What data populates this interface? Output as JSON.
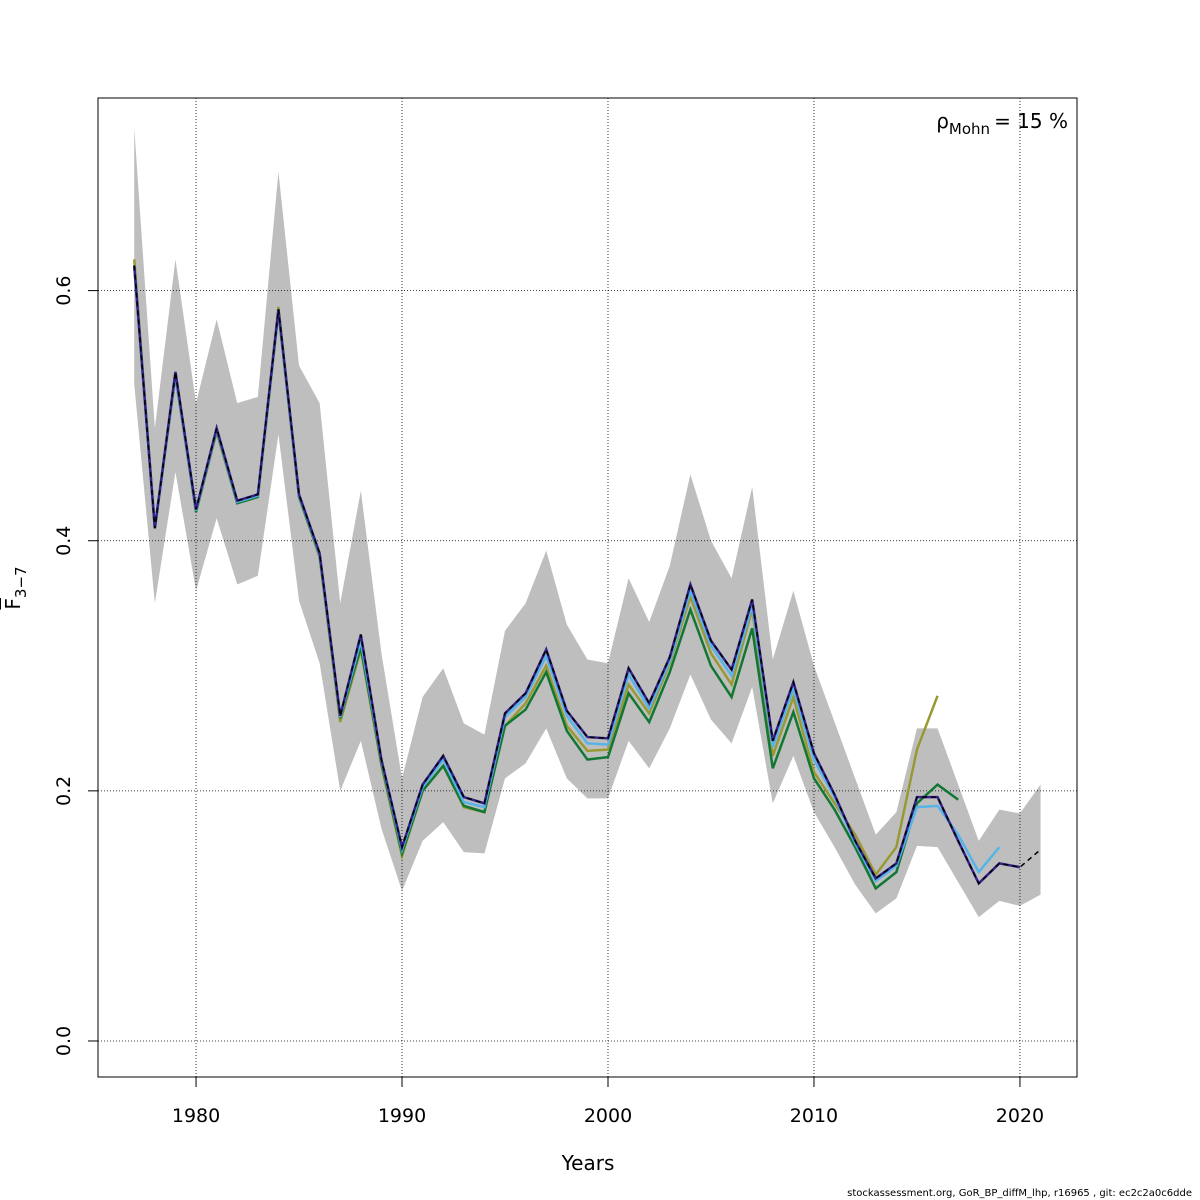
{
  "chart_data": {
    "type": "line",
    "xlabel": "Years",
    "ylabel": {
      "main": "F",
      "sub": "3−7"
    },
    "annotation": {
      "symbol": "ρ",
      "sub": "Mohn",
      "text": "= 15 %"
    },
    "footer": "stockassessment.org, GoR_BP_diffM_lhp, r16965 , git: ec2c2a0c6dde",
    "x": [
      1977,
      1978,
      1979,
      1980,
      1981,
      1982,
      1983,
      1984,
      1985,
      1986,
      1987,
      1988,
      1989,
      1990,
      1991,
      1992,
      1993,
      1994,
      1995,
      1996,
      1997,
      1998,
      1999,
      2000,
      2001,
      2002,
      2003,
      2004,
      2005,
      2006,
      2007,
      2008,
      2009,
      2010,
      2011,
      2012,
      2013,
      2014,
      2015,
      2016,
      2017,
      2018,
      2019,
      2020,
      2021
    ],
    "band": {
      "color": "#bebebe",
      "upper": [
        0.73,
        0.49,
        0.625,
        0.51,
        0.577,
        0.51,
        0.515,
        0.695,
        0.54,
        0.51,
        0.35,
        0.44,
        0.31,
        0.21,
        0.275,
        0.298,
        0.254,
        0.245,
        0.328,
        0.35,
        0.392,
        0.333,
        0.305,
        0.302,
        0.37,
        0.335,
        0.38,
        0.453,
        0.4,
        0.37,
        0.443,
        0.305,
        0.36,
        0.3,
        0.255,
        0.21,
        0.165,
        0.183,
        0.25,
        0.25,
        0.205,
        0.16,
        0.185,
        0.182,
        0.205
      ],
      "lower": [
        0.525,
        0.35,
        0.455,
        0.36,
        0.418,
        0.365,
        0.372,
        0.485,
        0.352,
        0.302,
        0.2,
        0.24,
        0.17,
        0.12,
        0.16,
        0.175,
        0.151,
        0.15,
        0.21,
        0.222,
        0.25,
        0.21,
        0.194,
        0.194,
        0.24,
        0.218,
        0.25,
        0.293,
        0.257,
        0.238,
        0.283,
        0.19,
        0.228,
        0.183,
        0.155,
        0.125,
        0.102,
        0.114,
        0.156,
        0.155,
        0.127,
        0.099,
        0.112,
        0.108,
        0.117
      ]
    },
    "series": [
      {
        "color": "#999933",
        "values": [
          0.625,
          0.41,
          0.535,
          0.423,
          0.487,
          0.43,
          0.435,
          0.587,
          0.435,
          0.387,
          0.255,
          0.313,
          0.22,
          0.148,
          0.2,
          0.22,
          0.187,
          0.183,
          0.252,
          0.27,
          0.3,
          0.252,
          0.232,
          0.233,
          0.285,
          0.262,
          0.302,
          0.355,
          0.31,
          0.285,
          0.345,
          0.228,
          0.275,
          0.215,
          0.19,
          0.165,
          0.133,
          0.155,
          0.233,
          0.276,
          null,
          null,
          null,
          null,
          null
        ]
      },
      {
        "color": "#117733",
        "values": [
          0.62,
          0.41,
          0.532,
          0.423,
          0.488,
          0.43,
          0.435,
          0.583,
          0.435,
          0.388,
          0.258,
          0.315,
          0.222,
          0.15,
          0.2,
          0.22,
          0.188,
          0.183,
          0.252,
          0.265,
          0.295,
          0.248,
          0.225,
          0.227,
          0.278,
          0.255,
          0.295,
          0.345,
          0.3,
          0.275,
          0.33,
          0.218,
          0.263,
          0.21,
          0.185,
          0.155,
          0.122,
          0.135,
          0.19,
          0.205,
          0.193,
          null,
          null,
          null,
          null
        ]
      },
      {
        "color": "#56b4e9",
        "values": [
          0.62,
          0.41,
          0.533,
          0.424,
          0.489,
          0.431,
          0.436,
          0.584,
          0.436,
          0.389,
          0.259,
          0.32,
          0.224,
          0.153,
          0.203,
          0.225,
          0.191,
          0.187,
          0.259,
          0.275,
          0.308,
          0.26,
          0.238,
          0.237,
          0.293,
          0.266,
          0.304,
          0.36,
          0.316,
          0.292,
          0.348,
          0.235,
          0.282,
          0.225,
          0.195,
          0.158,
          0.128,
          0.14,
          0.187,
          0.188,
          0.165,
          0.135,
          0.155,
          null,
          null
        ]
      },
      {
        "color": "#332288",
        "values": [
          0.62,
          0.41,
          0.535,
          0.425,
          0.49,
          0.432,
          0.437,
          0.585,
          0.437,
          0.39,
          0.26,
          0.325,
          0.225,
          0.155,
          0.205,
          0.228,
          0.195,
          0.19,
          0.262,
          0.278,
          0.313,
          0.264,
          0.243,
          0.242,
          0.298,
          0.27,
          0.307,
          0.365,
          0.32,
          0.297,
          0.353,
          0.24,
          0.287,
          0.23,
          0.197,
          0.16,
          0.13,
          0.142,
          0.195,
          0.195,
          0.16,
          0.126,
          0.142,
          0.139,
          null
        ]
      },
      {
        "color": "#000000",
        "dash": true,
        "values": [
          0.62,
          0.41,
          0.535,
          0.425,
          0.49,
          0.432,
          0.437,
          0.585,
          0.437,
          0.39,
          0.26,
          0.325,
          0.225,
          0.155,
          0.205,
          0.228,
          0.195,
          0.19,
          0.262,
          0.278,
          0.313,
          0.264,
          0.243,
          0.242,
          0.298,
          0.27,
          0.307,
          0.365,
          0.32,
          0.297,
          0.353,
          0.24,
          0.287,
          0.23,
          0.197,
          0.16,
          0.13,
          0.142,
          0.195,
          0.195,
          0.16,
          0.126,
          0.142,
          0.139,
          0.153
        ]
      }
    ],
    "xlim": [
      1975.24,
      2022.77
    ],
    "ylim": [
      -0.0288,
      0.754
    ],
    "xticks": [
      1980,
      1990,
      2000,
      2010,
      2020
    ],
    "yticks": [
      {
        "value": 0,
        "label": "0.0"
      },
      0.2,
      0.4,
      0.6
    ],
    "grid": true
  }
}
